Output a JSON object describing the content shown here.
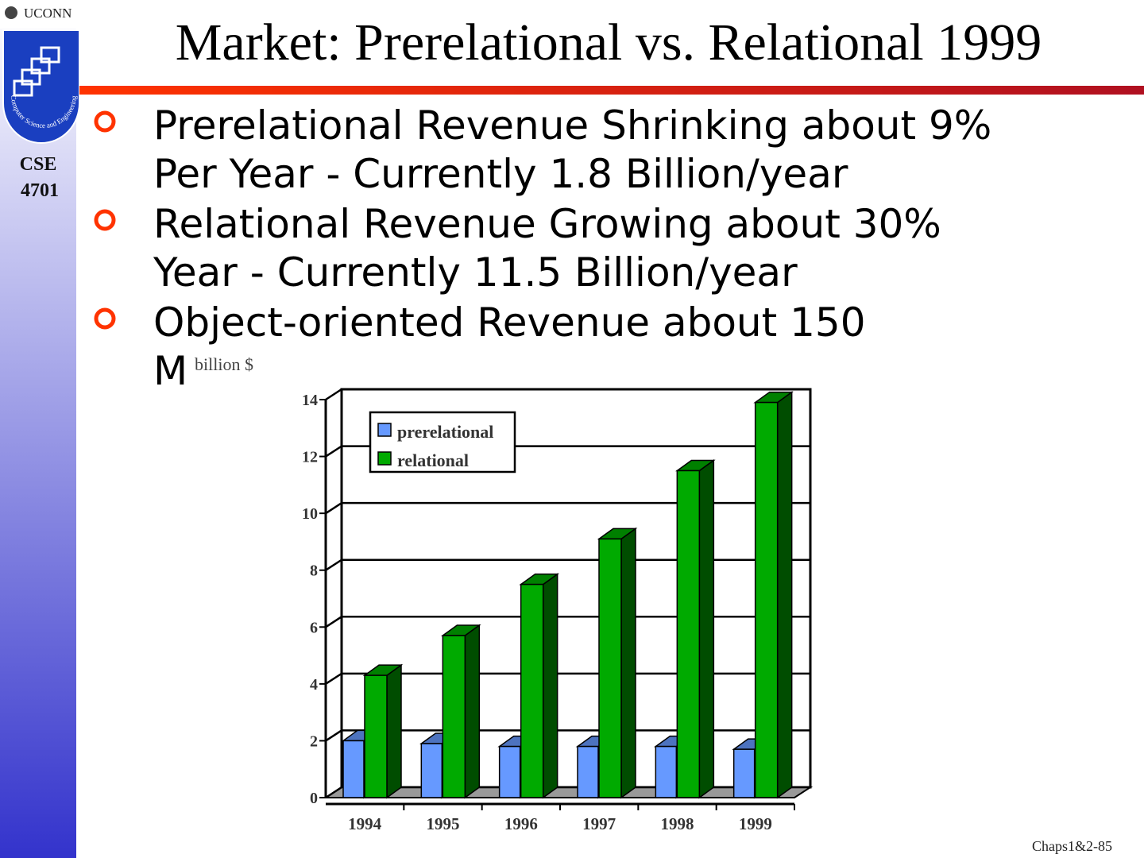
{
  "header": {
    "logo_text": "UCONN",
    "logo_caption": "Computer Science and Engineering",
    "course": [
      "CSE",
      "4701"
    ]
  },
  "title": "Market: Prerelational vs. Relational 1999",
  "bullets": [
    [
      "Prerelational Revenue Shrinking about 9%",
      "Per Year - Currently 1.8 Billion/year"
    ],
    [
      "Relational Revenue Growing about 30%",
      "Year -  Currently 11.5 Billion/year"
    ],
    [
      "Object-oriented Revenue about 150",
      "M"
    ]
  ],
  "chart_data": {
    "type": "bar3d",
    "ylabel": "billion $",
    "categories": [
      "1994",
      "1995",
      "1996",
      "1997",
      "1998",
      "1999"
    ],
    "series": [
      {
        "name": "prerelational",
        "color": "#6699ff",
        "values": [
          2.0,
          1.9,
          1.8,
          1.8,
          1.8,
          1.7
        ]
      },
      {
        "name": "relational",
        "color": "#00aa00",
        "values": [
          4.3,
          5.7,
          7.5,
          9.1,
          11.5,
          13.9
        ]
      }
    ],
    "ylim": [
      0,
      14
    ],
    "yticks": [
      0,
      2,
      4,
      6,
      8,
      10,
      12,
      14
    ],
    "grid": true,
    "legend": "upper left"
  },
  "footer": "Chaps1&2-85"
}
